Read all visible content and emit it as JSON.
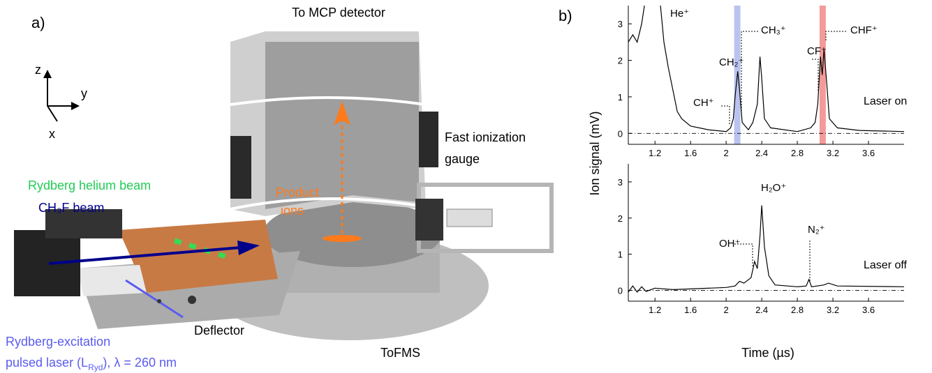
{
  "figure": {
    "panel_a": {
      "label": "a)",
      "top_label": "To MCP detector",
      "axis_z": "z",
      "axis_y": "y",
      "axis_x": "x",
      "gauge": [
        "Fast ionization",
        "gauge"
      ],
      "helium_beam": "Rydberg helium beam",
      "ch3f_beam": "CH₃F beam",
      "product": [
        "Product",
        "ions"
      ],
      "deflector": "Deflector",
      "tofms": "ToFMS",
      "laser": [
        "Rydberg-excitation",
        "pulsed laser (L",
        "Ryd",
        "), λ = 260 nm"
      ]
    },
    "panel_b": {
      "label": "b)",
      "ylabel": "Ion signal (mV)",
      "xlabel": "Time (µs)"
    }
  },
  "chart_data": [
    {
      "type": "line",
      "color": "#000000",
      "label": "Laser on",
      "xlim": [
        0.9,
        4.0
      ],
      "ylim": [
        -0.3,
        3.5
      ],
      "xticks": [
        1.2,
        1.6,
        2,
        2.4,
        2.8,
        3.2,
        3.6
      ],
      "yticks": [
        0,
        1,
        2,
        3
      ],
      "bands": [
        {
          "x": [
            2.09,
            2.16
          ],
          "color": "#b9c3ef"
        },
        {
          "x": [
            3.05,
            3.12
          ],
          "color": "#f39a9a"
        }
      ],
      "annotations": [
        "He⁺",
        "CH₂⁺",
        "CH₃⁺",
        "CH⁺",
        "CF⁺",
        "CHF⁺"
      ],
      "x": [
        0.9,
        0.95,
        1.0,
        1.05,
        1.1,
        1.25,
        1.3,
        1.35,
        1.4,
        1.45,
        1.5,
        1.6,
        1.8,
        2.0,
        2.05,
        2.08,
        2.1,
        2.13,
        2.15,
        2.18,
        2.25,
        2.3,
        2.35,
        2.38,
        2.4,
        2.43,
        2.5,
        2.8,
        2.95,
        3.0,
        3.03,
        3.06,
        3.08,
        3.1,
        3.13,
        3.16,
        3.25,
        3.5,
        4.0
      ],
      "values": [
        2.5,
        2.7,
        2.5,
        3.0,
        3.8,
        3.8,
        2.5,
        1.8,
        1.2,
        0.6,
        0.4,
        0.2,
        0.1,
        0.05,
        0.15,
        0.4,
        1.0,
        1.7,
        1.2,
        0.3,
        0.1,
        0.3,
        0.8,
        2.1,
        1.5,
        0.4,
        0.15,
        0.05,
        0.15,
        0.3,
        0.8,
        2.1,
        1.6,
        2.3,
        1.4,
        0.4,
        0.15,
        0.08,
        0.05
      ]
    },
    {
      "type": "line",
      "color": "#000000",
      "label": "Laser off",
      "xlim": [
        0.9,
        4.0
      ],
      "ylim": [
        -0.3,
        3.5
      ],
      "xticks": [
        1.2,
        1.6,
        2,
        2.4,
        2.8,
        3.2,
        3.6
      ],
      "yticks": [
        0,
        1,
        2,
        3
      ],
      "bands": [],
      "annotations": [
        "H₂O⁺",
        "OH⁺",
        "N₂⁺"
      ],
      "x": [
        0.9,
        0.95,
        1.0,
        1.05,
        1.1,
        1.2,
        1.4,
        1.6,
        2.0,
        2.1,
        2.15,
        2.2,
        2.28,
        2.32,
        2.35,
        2.38,
        2.4,
        2.43,
        2.48,
        2.55,
        2.8,
        2.9,
        2.93,
        2.96,
        3.1,
        3.15,
        3.25,
        4.0
      ],
      "values": [
        -0.05,
        0.12,
        -0.05,
        0.1,
        -0.03,
        0.06,
        0.02,
        0.04,
        0.08,
        0.12,
        0.25,
        0.2,
        0.35,
        0.8,
        0.6,
        1.5,
        2.35,
        1.2,
        0.4,
        0.15,
        0.1,
        0.12,
        0.3,
        0.1,
        0.15,
        0.2,
        0.12,
        0.1
      ]
    }
  ]
}
